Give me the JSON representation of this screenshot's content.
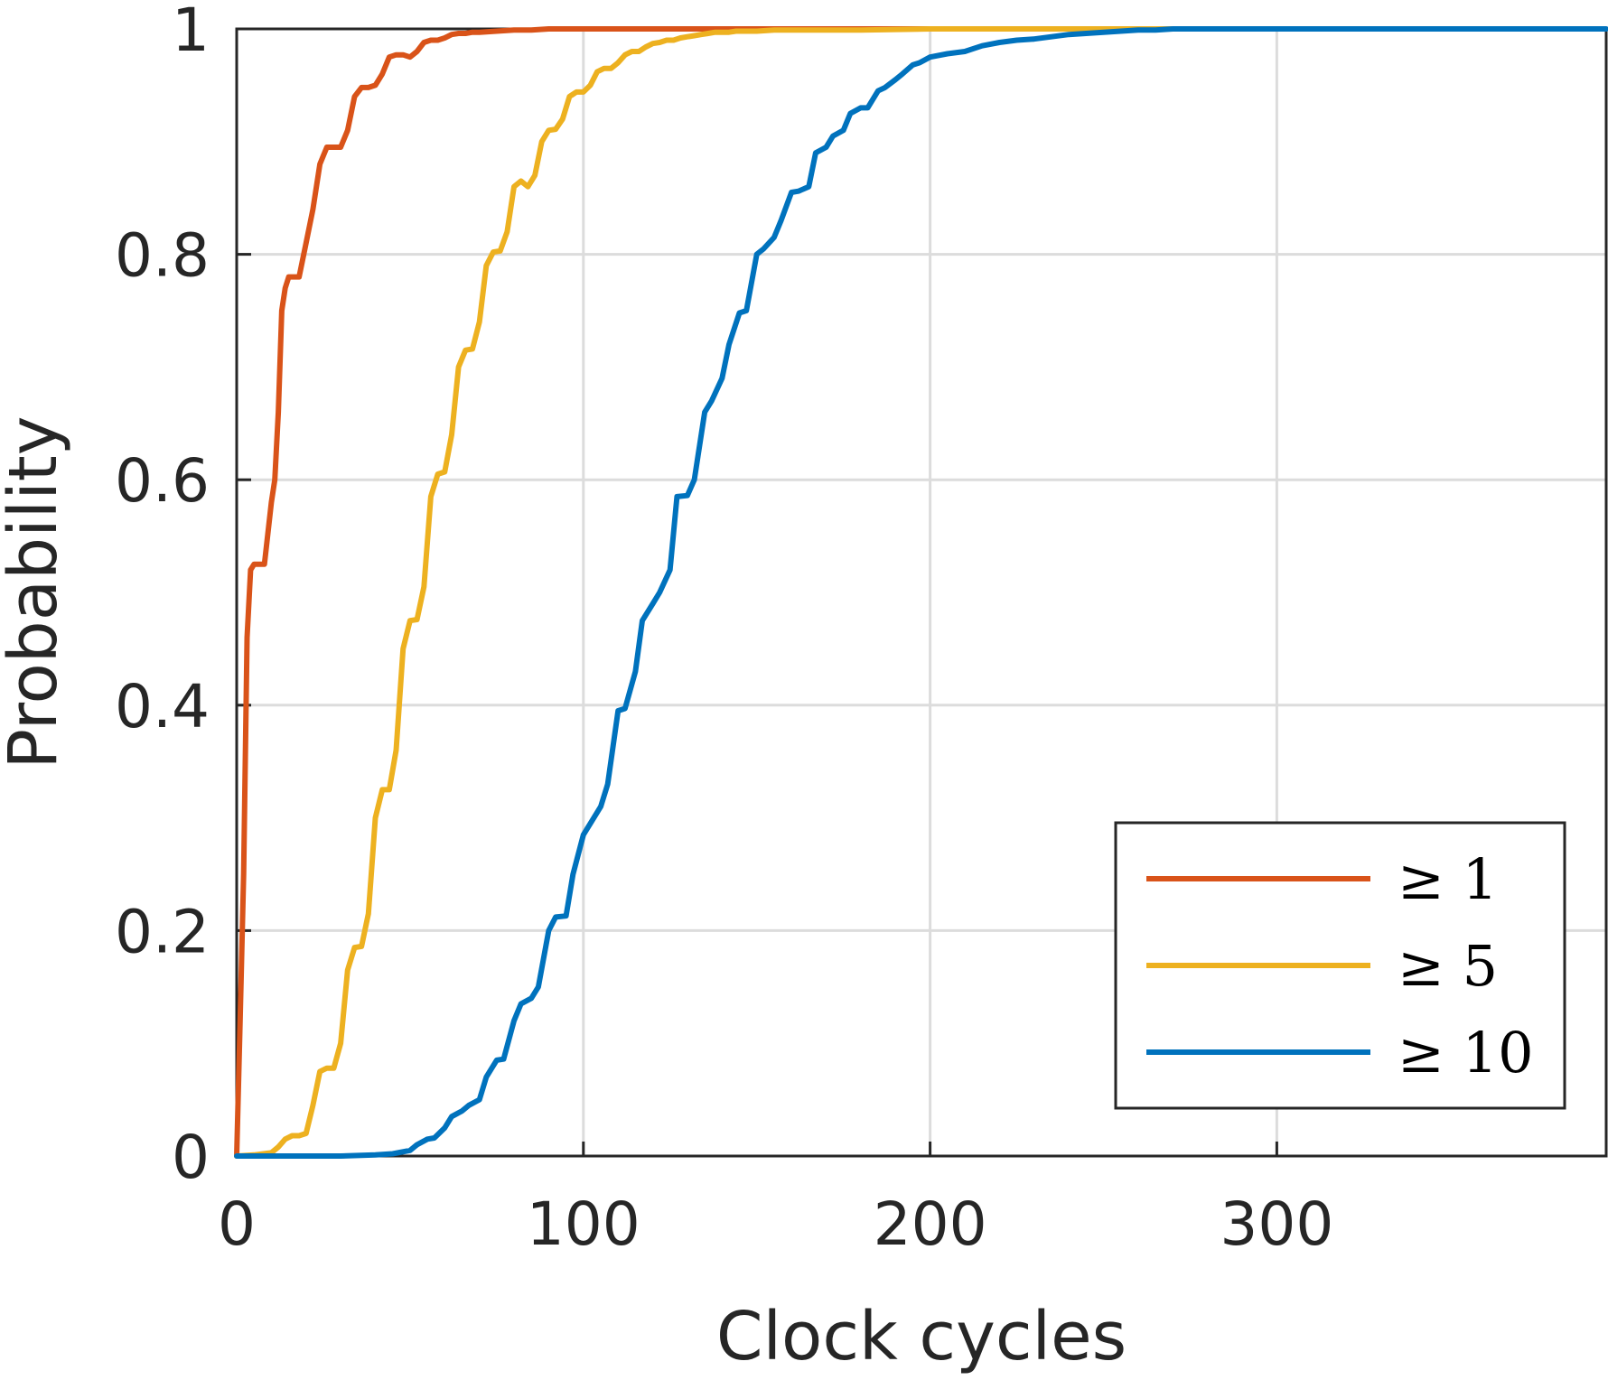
{
  "chart_data": {
    "type": "line",
    "title": "",
    "xlabel": "Clock cycles",
    "ylabel": "Probability",
    "xlim": [
      0,
      395
    ],
    "ylim": [
      0,
      1
    ],
    "xticks": [
      0,
      100,
      200,
      300
    ],
    "xtick_labels": [
      "0",
      "100",
      "200",
      "300"
    ],
    "yticks": [
      0,
      0.2,
      0.4,
      0.6,
      0.8,
      1
    ],
    "ytick_labels": [
      "0",
      "0.2",
      "0.4",
      "0.6",
      "0.8",
      "1"
    ],
    "grid": true,
    "legend_position": "bottom-right",
    "series": [
      {
        "name": "≥ 1",
        "color": "#D95319",
        "x": [
          0,
          1,
          2,
          3,
          4,
          5,
          6,
          8,
          10,
          11,
          12,
          13,
          14,
          15,
          16,
          18,
          20,
          22,
          24,
          26,
          28,
          30,
          32,
          34,
          36,
          38,
          40,
          42,
          44,
          46,
          48,
          50,
          52,
          54,
          56,
          58,
          60,
          62,
          64,
          66,
          68,
          70,
          75,
          80,
          85,
          90,
          95,
          100,
          120,
          150,
          200
        ],
        "values": [
          0,
          0.12,
          0.25,
          0.46,
          0.52,
          0.525,
          0.525,
          0.525,
          0.58,
          0.6,
          0.66,
          0.75,
          0.77,
          0.78,
          0.78,
          0.78,
          0.81,
          0.84,
          0.88,
          0.895,
          0.895,
          0.895,
          0.91,
          0.94,
          0.948,
          0.948,
          0.95,
          0.96,
          0.975,
          0.977,
          0.977,
          0.975,
          0.98,
          0.988,
          0.99,
          0.99,
          0.992,
          0.995,
          0.996,
          0.996,
          0.997,
          0.997,
          0.998,
          0.999,
          0.999,
          1,
          1,
          1,
          1,
          1,
          1
        ]
      },
      {
        "name": "≥ 5",
        "color": "#EDB120",
        "x": [
          0,
          5,
          10,
          12,
          14,
          16,
          18,
          20,
          22,
          24,
          26,
          28,
          30,
          32,
          34,
          36,
          38,
          40,
          42,
          44,
          46,
          48,
          50,
          52,
          54,
          56,
          58,
          60,
          62,
          64,
          66,
          68,
          70,
          72,
          74,
          76,
          78,
          80,
          82,
          84,
          86,
          88,
          90,
          92,
          94,
          96,
          98,
          100,
          102,
          104,
          106,
          108,
          110,
          112,
          114,
          116,
          118,
          120,
          122,
          124,
          126,
          128,
          130,
          132,
          134,
          136,
          138,
          140,
          142,
          144,
          146,
          148,
          150,
          155,
          160,
          170,
          180,
          200,
          230,
          260,
          300
        ],
        "values": [
          0,
          0.001,
          0.003,
          0.008,
          0.015,
          0.018,
          0.018,
          0.02,
          0.045,
          0.075,
          0.078,
          0.078,
          0.1,
          0.165,
          0.185,
          0.186,
          0.215,
          0.3,
          0.325,
          0.325,
          0.36,
          0.45,
          0.475,
          0.476,
          0.505,
          0.585,
          0.605,
          0.607,
          0.64,
          0.7,
          0.715,
          0.716,
          0.74,
          0.79,
          0.802,
          0.803,
          0.82,
          0.86,
          0.865,
          0.86,
          0.87,
          0.9,
          0.91,
          0.911,
          0.92,
          0.94,
          0.944,
          0.944,
          0.95,
          0.962,
          0.965,
          0.965,
          0.97,
          0.977,
          0.98,
          0.98,
          0.984,
          0.987,
          0.988,
          0.99,
          0.99,
          0.992,
          0.993,
          0.994,
          0.995,
          0.996,
          0.997,
          0.997,
          0.997,
          0.998,
          0.998,
          0.998,
          0.998,
          0.999,
          0.999,
          0.999,
          0.999,
          1,
          1,
          1,
          1
        ]
      },
      {
        "name": "≥ 10",
        "color": "#0072BD",
        "x": [
          0,
          30,
          40,
          45,
          50,
          52,
          55,
          57,
          60,
          62,
          65,
          67,
          70,
          72,
          75,
          77,
          80,
          82,
          85,
          87,
          90,
          92,
          95,
          97,
          100,
          102,
          105,
          107,
          110,
          112,
          115,
          117,
          120,
          122,
          125,
          127,
          130,
          132,
          135,
          137,
          140,
          142,
          145,
          147,
          150,
          152,
          155,
          157,
          160,
          162,
          165,
          167,
          170,
          172,
          175,
          177,
          180,
          182,
          185,
          187,
          190,
          192,
          195,
          197,
          200,
          205,
          210,
          215,
          220,
          225,
          230,
          235,
          240,
          245,
          250,
          255,
          260,
          265,
          270,
          275,
          280,
          290,
          300,
          320,
          350,
          395
        ],
        "values": [
          0,
          0,
          0.001,
          0.002,
          0.005,
          0.01,
          0.015,
          0.016,
          0.025,
          0.035,
          0.04,
          0.045,
          0.05,
          0.07,
          0.085,
          0.086,
          0.12,
          0.135,
          0.14,
          0.15,
          0.2,
          0.212,
          0.213,
          0.25,
          0.285,
          0.295,
          0.31,
          0.33,
          0.395,
          0.397,
          0.43,
          0.475,
          0.49,
          0.5,
          0.52,
          0.585,
          0.586,
          0.6,
          0.66,
          0.67,
          0.69,
          0.72,
          0.748,
          0.75,
          0.8,
          0.805,
          0.815,
          0.83,
          0.855,
          0.856,
          0.86,
          0.89,
          0.895,
          0.905,
          0.91,
          0.925,
          0.93,
          0.93,
          0.945,
          0.948,
          0.955,
          0.96,
          0.968,
          0.97,
          0.975,
          0.978,
          0.98,
          0.985,
          0.988,
          0.99,
          0.991,
          0.993,
          0.995,
          0.996,
          0.997,
          0.998,
          0.999,
          0.999,
          1,
          1,
          1,
          1,
          1,
          1,
          1,
          1
        ]
      }
    ]
  }
}
